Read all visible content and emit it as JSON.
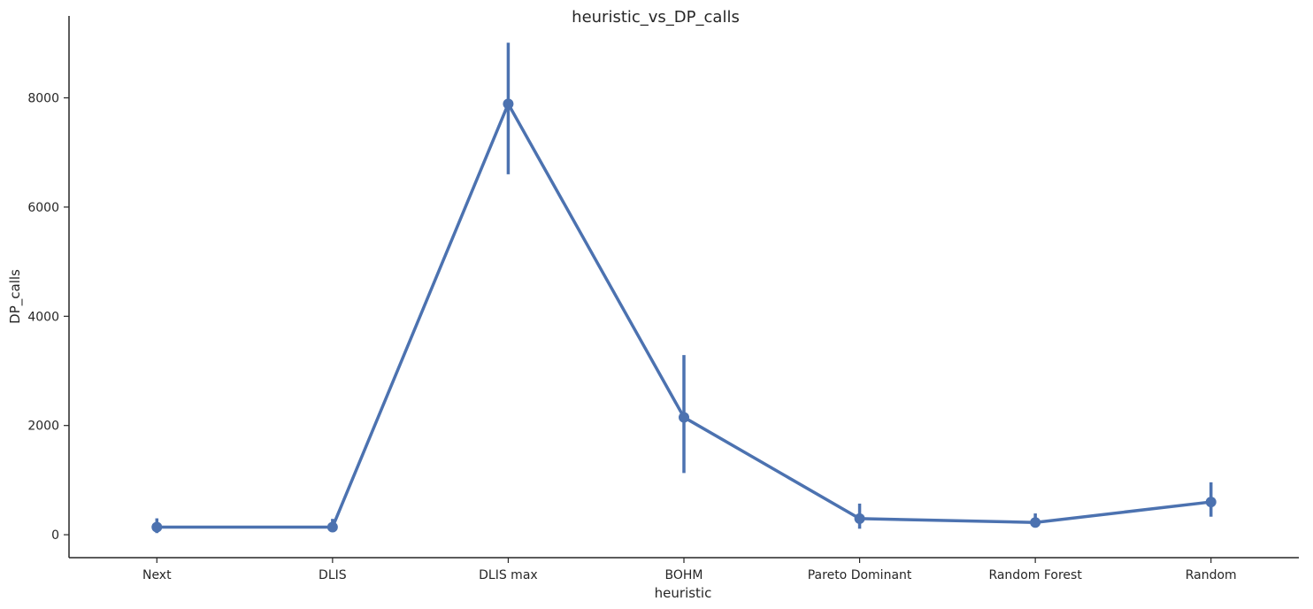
{
  "chart_data": {
    "type": "line",
    "title": "heuristic_vs_DP_calls",
    "xlabel": "heuristic",
    "ylabel": "DP_calls",
    "categories": [
      "Next",
      "DLIS",
      "DLIS max",
      "BOHM",
      "Pareto Dominant",
      "Random Forest",
      "Random"
    ],
    "values": [
      140,
      140,
      7890,
      2150,
      295,
      225,
      600
    ],
    "error_low": [
      30,
      60,
      6600,
      1130,
      110,
      130,
      330
    ],
    "error_high": [
      300,
      290,
      9010,
      3290,
      570,
      390,
      960
    ],
    "y_ticks": [
      0,
      2000,
      4000,
      6000,
      8000
    ],
    "ylim": [
      -420,
      9500
    ],
    "grid": false,
    "color": "#4c72b0"
  }
}
